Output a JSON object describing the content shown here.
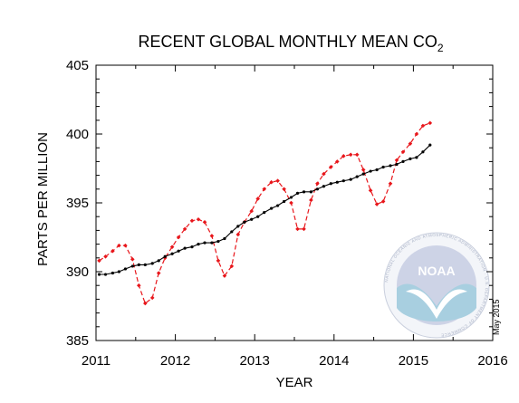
{
  "chart_data": {
    "type": "line",
    "title": "RECENT GLOBAL MONTHLY MEAN CO",
    "title_subscript": "2",
    "xlabel": "YEAR",
    "ylabel": "PARTS PER MILLION",
    "xlim": [
      2011,
      2016
    ],
    "ylim": [
      385,
      405
    ],
    "xticks": [
      2011,
      2012,
      2013,
      2014,
      2015,
      2016
    ],
    "yticks": [
      385,
      390,
      395,
      400,
      405
    ],
    "grid": false,
    "annotation": "May 2015",
    "logo": {
      "text": "NOAA",
      "ring_text": "NATIONAL OCEANIC AND ATMOSPHERIC ADMINISTRATION · U.S. DEPARTMENT OF COMMERCE"
    },
    "series": [
      {
        "style": "dashed",
        "color": "#e8161b",
        "x": [
          2011.04,
          2011.12,
          2011.21,
          2011.29,
          2011.37,
          2011.46,
          2011.54,
          2011.62,
          2011.71,
          2011.79,
          2011.87,
          2011.96,
          2012.04,
          2012.12,
          2012.21,
          2012.29,
          2012.37,
          2012.46,
          2012.54,
          2012.62,
          2012.71,
          2012.79,
          2012.87,
          2012.96,
          2013.04,
          2013.12,
          2013.21,
          2013.29,
          2013.37,
          2013.46,
          2013.54,
          2013.62,
          2013.71,
          2013.79,
          2013.87,
          2013.96,
          2014.04,
          2014.12,
          2014.21,
          2014.29,
          2014.37,
          2014.46,
          2014.54,
          2014.62,
          2014.71,
          2014.79,
          2014.87,
          2014.96,
          2015.04,
          2015.12,
          2015.21
        ],
        "y": [
          390.8,
          391.1,
          391.5,
          391.9,
          391.9,
          390.9,
          389.0,
          387.7,
          388.1,
          389.9,
          391.0,
          391.8,
          392.5,
          393.1,
          393.7,
          393.8,
          393.6,
          392.6,
          390.8,
          389.7,
          390.4,
          392.7,
          393.6,
          394.4,
          395.3,
          396.0,
          396.5,
          396.6,
          396.0,
          395.0,
          393.1,
          393.1,
          395.2,
          396.4,
          397.1,
          397.6,
          398.0,
          398.4,
          398.5,
          398.5,
          397.4,
          395.9,
          394.9,
          395.1,
          396.4,
          398.1,
          398.7,
          399.3,
          400.0,
          400.6,
          400.8
        ]
      },
      {
        "style": "solid",
        "color": "#000000",
        "x": [
          2011.04,
          2011.12,
          2011.21,
          2011.29,
          2011.37,
          2011.46,
          2011.54,
          2011.62,
          2011.71,
          2011.79,
          2011.87,
          2011.96,
          2012.04,
          2012.12,
          2012.21,
          2012.29,
          2012.37,
          2012.46,
          2012.54,
          2012.62,
          2012.71,
          2012.79,
          2012.87,
          2012.96,
          2013.04,
          2013.12,
          2013.21,
          2013.29,
          2013.37,
          2013.46,
          2013.54,
          2013.62,
          2013.71,
          2013.79,
          2013.87,
          2013.96,
          2014.04,
          2014.12,
          2014.21,
          2014.29,
          2014.37,
          2014.46,
          2014.54,
          2014.62,
          2014.71,
          2014.79,
          2014.87,
          2014.96,
          2015.04,
          2015.12,
          2015.21
        ],
        "y": [
          389.8,
          389.8,
          389.9,
          390.0,
          390.2,
          390.4,
          390.5,
          390.5,
          390.6,
          390.8,
          391.1,
          391.3,
          391.5,
          391.7,
          391.8,
          392.0,
          392.1,
          392.1,
          392.2,
          392.4,
          392.9,
          393.3,
          393.6,
          393.8,
          394.0,
          394.3,
          394.6,
          394.8,
          395.1,
          395.4,
          395.7,
          395.8,
          395.8,
          396.0,
          396.2,
          396.4,
          396.5,
          396.6,
          396.7,
          396.9,
          397.1,
          397.3,
          397.4,
          397.6,
          397.7,
          397.8,
          398.0,
          398.2,
          398.3,
          398.7,
          399.2
        ]
      }
    ]
  }
}
